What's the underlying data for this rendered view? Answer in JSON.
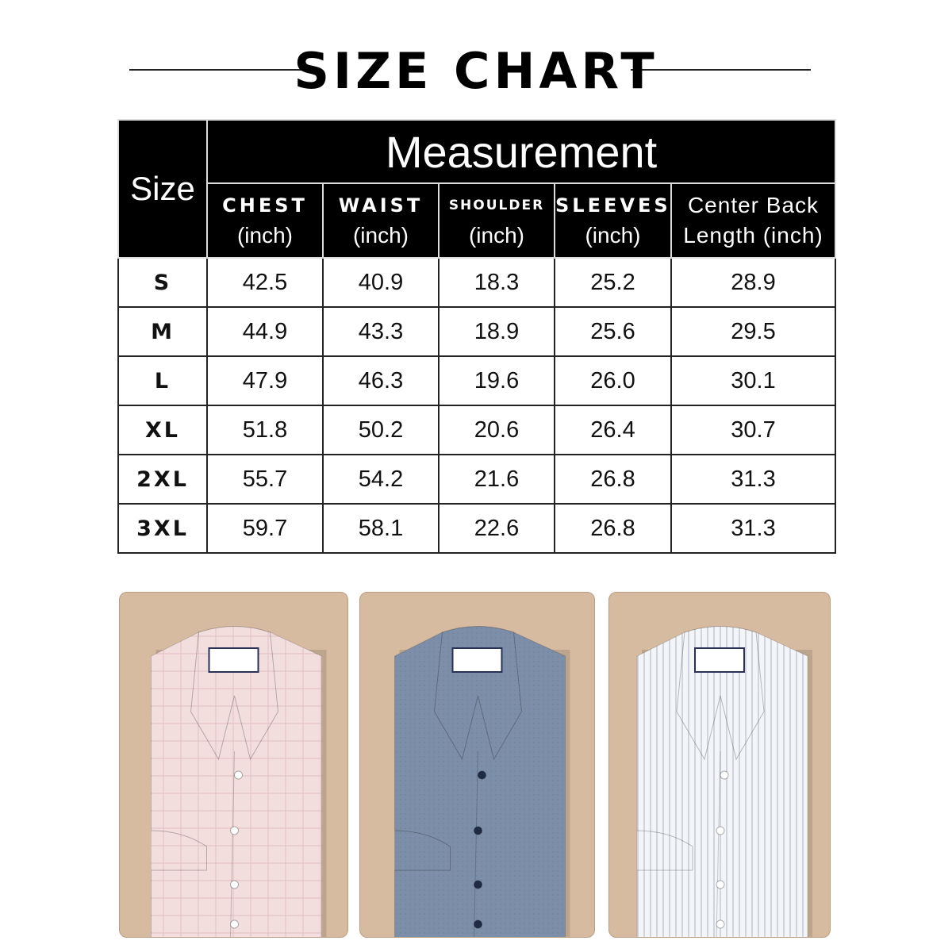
{
  "title": "SIZE CHART",
  "table": {
    "group_header": "Measurement",
    "size_header": "Size",
    "columns": [
      {
        "name": "CHEST",
        "unit": "(inch)"
      },
      {
        "name": "WAIST",
        "unit": "(inch)"
      },
      {
        "name": "SHOULDER",
        "unit": "(inch)"
      },
      {
        "name": "SLEEVES",
        "unit": "(inch)"
      },
      {
        "name": "Center Back",
        "unit": "Length (inch)"
      }
    ],
    "rows": [
      {
        "size": "S",
        "values": [
          "42.5",
          "40.9",
          "18.3",
          "25.2",
          "28.9"
        ]
      },
      {
        "size": "M",
        "values": [
          "44.9",
          "43.3",
          "18.9",
          "25.6",
          "29.5"
        ]
      },
      {
        "size": "L",
        "values": [
          "47.9",
          "46.3",
          "19.6",
          "26.0",
          "30.1"
        ]
      },
      {
        "size": "XL",
        "values": [
          "51.8",
          "50.2",
          "20.6",
          "26.4",
          "30.7"
        ]
      },
      {
        "size": "2XL",
        "values": [
          "55.7",
          "54.2",
          "21.6",
          "26.8",
          "31.3"
        ]
      },
      {
        "size": "3XL",
        "values": [
          "59.7",
          "58.1",
          "22.6",
          "26.8",
          "31.3"
        ]
      }
    ]
  },
  "shirts": [
    {
      "color": "pink check",
      "body": "#f3dede",
      "pattern": "#e6c3c6",
      "button": "#ffffff"
    },
    {
      "color": "blue",
      "body": "#7d8fa8",
      "pattern": "#6f8099",
      "button": "#1f2a44"
    },
    {
      "color": "white stripe",
      "body": "#f4f5f8",
      "pattern": "#9aa3b8",
      "button": "#ffffff"
    }
  ],
  "colors": {
    "panel_bg": "#d6bba1",
    "header_bg": "#000000"
  }
}
